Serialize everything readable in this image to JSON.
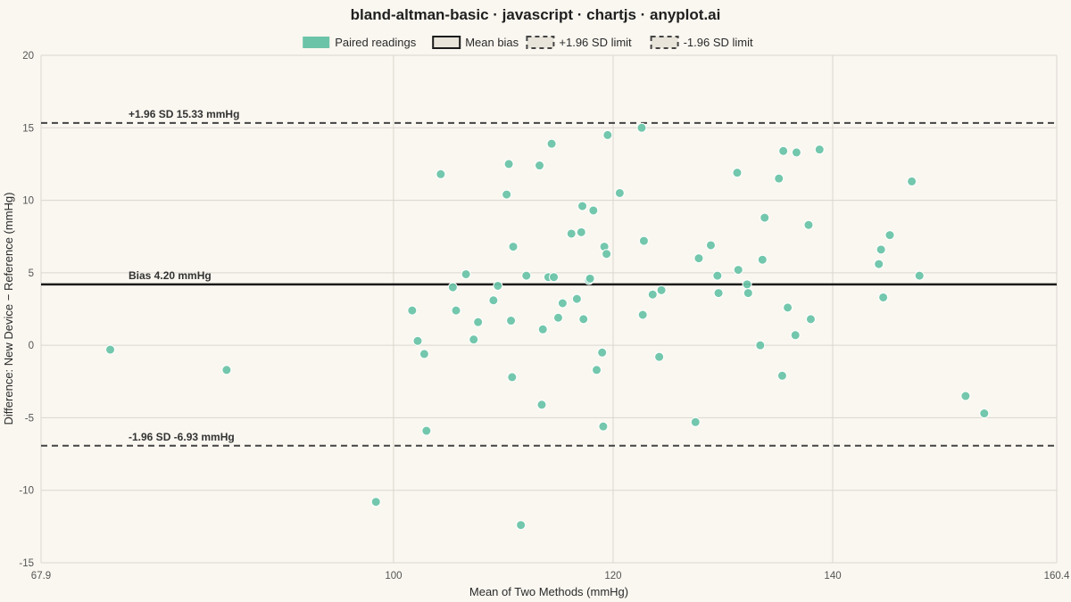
{
  "chart_data": {
    "type": "scatter",
    "title": "bland-altman-basic · javascript · chartjs · anyplot.ai",
    "xlabel": "Mean of Two Methods (mmHg)",
    "ylabel": "Difference: New Device − Reference (mmHg)",
    "xlim": [
      67.9,
      160.4
    ],
    "ylim": [
      -15,
      20
    ],
    "x_ticks": [
      "67.9",
      "100",
      "120",
      "140",
      "160.4"
    ],
    "y_ticks": [
      "20",
      "15",
      "10",
      "5",
      "0",
      "-5",
      "-10",
      "-15"
    ],
    "grid": true,
    "legend_position": "top-center",
    "legend": [
      {
        "label": "Paired readings",
        "style": "filled"
      },
      {
        "label": "Mean bias",
        "style": "solid"
      },
      {
        "label": "+1.96 SD limit",
        "style": "dashed"
      },
      {
        "label": "-1.96 SD limit",
        "style": "dashed"
      }
    ],
    "lines": {
      "bias": 4.2,
      "upper": 15.33,
      "lower": -6.93
    },
    "annotations": {
      "upper": "+1.96 SD  15.33 mmHg",
      "bias": "Bias 4.20 mmHg",
      "lower": "-1.96 SD  -6.93 mmHg"
    },
    "colors": {
      "points": "#6cc4a8",
      "points_edge": "#ffffff",
      "bias_line": "#1a1a1a",
      "limit_line": "#444444",
      "background": "#faf7f0"
    },
    "series": [
      {
        "name": "Paired readings",
        "points": [
          [
            74.2,
            -0.3
          ],
          [
            84.8,
            -1.7
          ],
          [
            98.4,
            -10.8
          ],
          [
            101.7,
            2.4
          ],
          [
            102.2,
            0.3
          ],
          [
            102.8,
            -0.6
          ],
          [
            103.0,
            -5.9
          ],
          [
            104.3,
            11.8
          ],
          [
            105.4,
            4.0
          ],
          [
            105.7,
            2.4
          ],
          [
            106.6,
            4.9
          ],
          [
            107.3,
            0.4
          ],
          [
            107.7,
            1.6
          ],
          [
            109.1,
            3.1
          ],
          [
            109.5,
            4.1
          ],
          [
            110.3,
            10.4
          ],
          [
            110.5,
            12.5
          ],
          [
            110.7,
            1.7
          ],
          [
            110.8,
            -2.2
          ],
          [
            110.9,
            6.8
          ],
          [
            111.6,
            -12.4
          ],
          [
            112.1,
            4.8
          ],
          [
            113.3,
            12.4
          ],
          [
            113.5,
            -4.1
          ],
          [
            113.6,
            1.1
          ],
          [
            114.1,
            4.7
          ],
          [
            114.4,
            13.9
          ],
          [
            114.6,
            4.7
          ],
          [
            115.0,
            1.9
          ],
          [
            115.4,
            2.9
          ],
          [
            116.2,
            7.7
          ],
          [
            116.7,
            3.2
          ],
          [
            117.1,
            7.8
          ],
          [
            117.2,
            9.6
          ],
          [
            117.3,
            1.8
          ],
          [
            117.8,
            4.5
          ],
          [
            117.9,
            4.6
          ],
          [
            118.2,
            9.3
          ],
          [
            118.5,
            -1.7
          ],
          [
            119.0,
            -0.5
          ],
          [
            119.1,
            -5.6
          ],
          [
            119.2,
            6.8
          ],
          [
            119.4,
            6.3
          ],
          [
            119.5,
            14.5
          ],
          [
            120.6,
            10.5
          ],
          [
            122.6,
            15.0
          ],
          [
            122.7,
            2.1
          ],
          [
            122.8,
            7.2
          ],
          [
            123.6,
            3.5
          ],
          [
            124.2,
            -0.8
          ],
          [
            124.4,
            3.8
          ],
          [
            127.5,
            -5.3
          ],
          [
            127.8,
            6.0
          ],
          [
            128.9,
            6.9
          ],
          [
            129.5,
            4.8
          ],
          [
            129.6,
            3.6
          ],
          [
            131.3,
            11.9
          ],
          [
            131.4,
            5.2
          ],
          [
            132.2,
            4.2
          ],
          [
            132.3,
            3.6
          ],
          [
            133.4,
            0.0
          ],
          [
            133.6,
            5.9
          ],
          [
            133.8,
            8.8
          ],
          [
            135.1,
            11.5
          ],
          [
            135.4,
            -2.1
          ],
          [
            135.5,
            13.4
          ],
          [
            135.9,
            2.6
          ],
          [
            136.6,
            0.7
          ],
          [
            136.7,
            13.3
          ],
          [
            137.8,
            8.3
          ],
          [
            138.0,
            1.8
          ],
          [
            138.8,
            13.5
          ],
          [
            144.2,
            5.6
          ],
          [
            144.4,
            6.6
          ],
          [
            144.6,
            3.3
          ],
          [
            145.2,
            7.6
          ],
          [
            147.2,
            11.3
          ],
          [
            147.9,
            4.8
          ],
          [
            152.1,
            -3.5
          ],
          [
            153.8,
            -4.7
          ]
        ]
      }
    ]
  }
}
